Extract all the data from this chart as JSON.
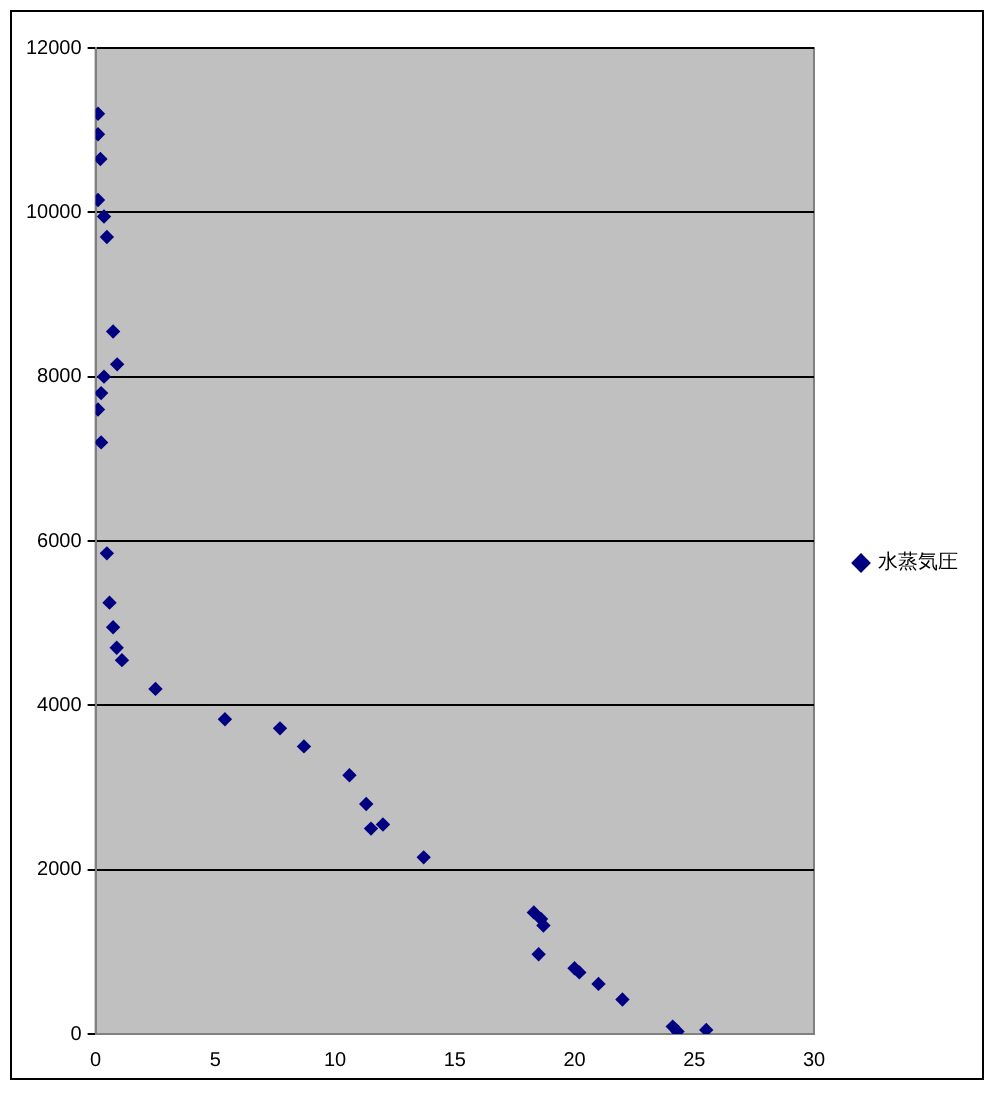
{
  "chart_data": {
    "type": "scatter",
    "marker": "diamond",
    "grid": "y",
    "legend": "right",
    "xlim": [
      0,
      30
    ],
    "xticks": [
      0,
      5,
      10,
      15,
      20,
      25,
      30
    ],
    "ylim": [
      0,
      12000
    ],
    "yticks": [
      0,
      2000,
      4000,
      6000,
      8000,
      10000,
      12000
    ],
    "series": [
      {
        "name": "水蒸気圧",
        "color": "#000080",
        "x": [
          0.1,
          0.1,
          0.2,
          0.1,
          0.35,
          0.47,
          0.73,
          0.9,
          0.35,
          0.23,
          0.1,
          0.23,
          0.47,
          0.58,
          0.73,
          0.88,
          1.1,
          2.5,
          5.4,
          7.7,
          8.7,
          10.6,
          11.3,
          11.5,
          12.0,
          13.7,
          18.3,
          18.6,
          18.7,
          18.5,
          20.0,
          20.2,
          21.0,
          22.0,
          24.1,
          24.3,
          25.5
        ],
        "values": [
          11200,
          10950,
          10650,
          10150,
          9950,
          9700,
          8550,
          8150,
          8000,
          7800,
          7600,
          7200,
          5850,
          5250,
          4950,
          4700,
          4550,
          4200,
          3830,
          3720,
          3500,
          3150,
          2800,
          2500,
          2550,
          2150,
          1480,
          1400,
          1320,
          970,
          800,
          750,
          610,
          420,
          90,
          30,
          50
        ]
      }
    ]
  }
}
